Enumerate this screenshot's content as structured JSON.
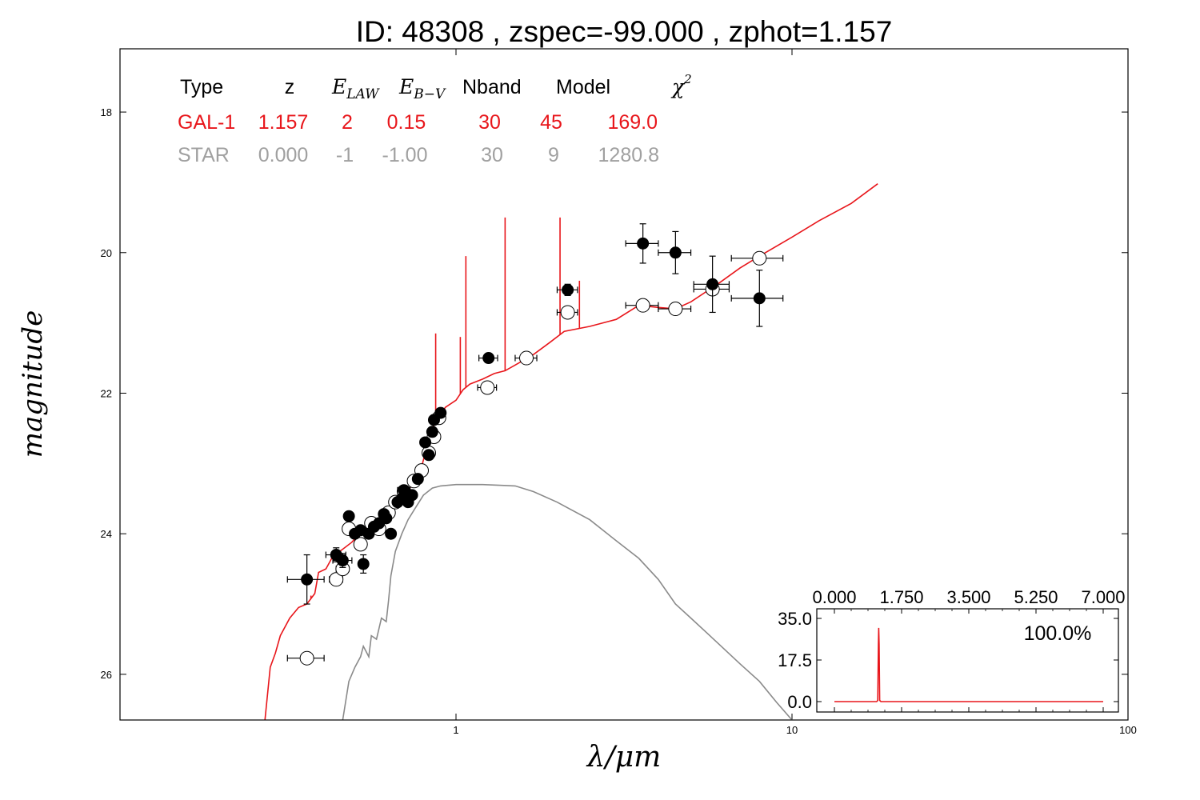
{
  "title": "ID:  48308 , zspec=-99.000 , zphot=1.157",
  "colors": {
    "galaxy": "#e8161b",
    "star": "#8a8a8a",
    "axis": "#000000",
    "table_star": "#a0a0a0"
  },
  "fit_table": {
    "headers": {
      "type": "Type",
      "z": "z",
      "elaw": "LAW",
      "ebv": "B−V",
      "nband": "Nband",
      "model": "Model",
      "chi2": "2"
    },
    "header_symbols": {
      "e": "E",
      "chi": "χ"
    },
    "rows": [
      {
        "type": "GAL-1",
        "z": "1.157",
        "elaw": "2",
        "ebv": "0.15",
        "nband": "30",
        "model": "45",
        "chi2": "169.0"
      },
      {
        "type": "STAR",
        "z": "0.000",
        "elaw": "-1",
        "ebv": "-1.00",
        "nband": "30",
        "model": "9",
        "chi2": "1280.8"
      }
    ]
  },
  "chart_data": [
    {
      "type": "scatter",
      "xlabel": "λ/μm",
      "ylabel": "magnitude",
      "x_scale": "log",
      "xlim": [
        0.1,
        100
      ],
      "ylim": [
        26.65,
        17.1
      ],
      "y_inverted": true,
      "x_ticks": [
        {
          "v": 1,
          "label": "1"
        },
        {
          "v": 10,
          "label": "10"
        },
        {
          "v": 100,
          "label": "100"
        }
      ],
      "y_ticks": [
        {
          "v": 18,
          "label": "18"
        },
        {
          "v": 20,
          "label": "20"
        },
        {
          "v": 22,
          "label": "22"
        },
        {
          "v": 24,
          "label": "24"
        },
        {
          "v": 26,
          "label": "26"
        }
      ],
      "observed": [
        {
          "x": 0.36,
          "y": 24.65,
          "xe": 0.045,
          "ye": 0.35
        },
        {
          "x": 0.44,
          "y": 24.3,
          "xe": 0.03,
          "ye": 0.1
        },
        {
          "x": 0.46,
          "y": 24.38,
          "xe": 0.03,
          "ye": 0.1
        },
        {
          "x": 0.48,
          "y": 23.75,
          "xe": 0.0,
          "ye": 0.0
        },
        {
          "x": 0.5,
          "y": 24.0,
          "xe": 0.015,
          "ye": 0.05
        },
        {
          "x": 0.52,
          "y": 23.95,
          "xe": 0.015,
          "ye": 0.05
        },
        {
          "x": 0.53,
          "y": 24.43,
          "xe": 0.0,
          "ye": 0.13
        },
        {
          "x": 0.55,
          "y": 24.0,
          "xe": 0.015,
          "ye": 0.05
        },
        {
          "x": 0.57,
          "y": 23.9,
          "xe": 0.015,
          "ye": 0.05
        },
        {
          "x": 0.59,
          "y": 23.85,
          "xe": 0.015,
          "ye": 0.05
        },
        {
          "x": 0.61,
          "y": 23.72,
          "xe": 0.015,
          "ye": 0.05
        },
        {
          "x": 0.62,
          "y": 23.78,
          "xe": 0.015,
          "ye": 0.05
        },
        {
          "x": 0.64,
          "y": 24.0,
          "xe": 0.0,
          "ye": 0.0
        },
        {
          "x": 0.67,
          "y": 23.55,
          "xe": 0.02,
          "ye": 0.05
        },
        {
          "x": 0.69,
          "y": 23.5,
          "xe": 0.02,
          "ye": 0.05
        },
        {
          "x": 0.7,
          "y": 23.38,
          "xe": 0.03,
          "ye": 0.05
        },
        {
          "x": 0.72,
          "y": 23.55,
          "xe": 0.02,
          "ye": 0.05
        },
        {
          "x": 0.74,
          "y": 23.45,
          "xe": 0.02,
          "ye": 0.05
        },
        {
          "x": 0.77,
          "y": 23.22,
          "xe": 0.02,
          "ye": 0.05
        },
        {
          "x": 0.81,
          "y": 22.7,
          "xe": 0.02,
          "ye": 0.05
        },
        {
          "x": 0.83,
          "y": 22.88,
          "xe": 0.02,
          "ye": 0.05
        },
        {
          "x": 0.85,
          "y": 22.55,
          "xe": 0.02,
          "ye": 0.05
        },
        {
          "x": 0.86,
          "y": 22.38,
          "xe": 0.02,
          "ye": 0.05
        },
        {
          "x": 0.9,
          "y": 22.28,
          "xe": 0.02,
          "ye": 0.05
        },
        {
          "x": 1.25,
          "y": 21.5,
          "xe": 0.08,
          "ye": 0.05
        },
        {
          "x": 2.15,
          "y": 20.53,
          "xe": 0.15,
          "ye": 0.08
        },
        {
          "x": 3.6,
          "y": 19.87,
          "xe": 0.4,
          "ye": 0.28
        },
        {
          "x": 4.5,
          "y": 20.0,
          "xe": 0.5,
          "ye": 0.3
        },
        {
          "x": 5.8,
          "y": 20.45,
          "xe": 0.7,
          "ye": 0.4
        },
        {
          "x": 8.0,
          "y": 20.65,
          "xe": 1.4,
          "ye": 0.4
        }
      ],
      "model_points": [
        {
          "x": 0.36,
          "y": 25.77,
          "xe": 0.045
        },
        {
          "x": 0.44,
          "y": 24.65,
          "xe": 0.02
        },
        {
          "x": 0.46,
          "y": 24.5,
          "xe": 0.02
        },
        {
          "x": 0.48,
          "y": 23.93,
          "xe": 0.0
        },
        {
          "x": 0.52,
          "y": 24.15,
          "xe": 0.015
        },
        {
          "x": 0.56,
          "y": 23.85,
          "xe": 0.015
        },
        {
          "x": 0.59,
          "y": 23.93,
          "xe": 0.015
        },
        {
          "x": 0.63,
          "y": 23.7,
          "xe": 0.02
        },
        {
          "x": 0.66,
          "y": 23.55,
          "xe": 0.02
        },
        {
          "x": 0.7,
          "y": 23.4,
          "xe": 0.02
        },
        {
          "x": 0.75,
          "y": 23.25,
          "xe": 0.02
        },
        {
          "x": 0.79,
          "y": 23.1,
          "xe": 0.02
        },
        {
          "x": 0.83,
          "y": 22.85,
          "xe": 0.02
        },
        {
          "x": 0.86,
          "y": 22.62,
          "xe": 0.02
        },
        {
          "x": 0.89,
          "y": 22.35,
          "xe": 0.02
        },
        {
          "x": 1.24,
          "y": 21.92,
          "xe": 0.08
        },
        {
          "x": 1.62,
          "y": 21.5,
          "xe": 0.12
        },
        {
          "x": 2.15,
          "y": 20.85,
          "xe": 0.15
        },
        {
          "x": 3.6,
          "y": 20.75,
          "xe": 0.4
        },
        {
          "x": 4.5,
          "y": 20.8,
          "xe": 0.5
        },
        {
          "x": 5.8,
          "y": 20.52,
          "xe": 0.7
        },
        {
          "x": 8.0,
          "y": 20.08,
          "xe": 1.4
        }
      ],
      "galaxy_sed": [
        [
          0.27,
          26.65
        ],
        [
          0.28,
          25.9
        ],
        [
          0.29,
          25.7
        ],
        [
          0.3,
          25.45
        ],
        [
          0.32,
          25.2
        ],
        [
          0.34,
          25.05
        ],
        [
          0.36,
          25.0
        ],
        [
          0.38,
          24.85
        ],
        [
          0.39,
          24.55
        ],
        [
          0.41,
          24.5
        ],
        [
          0.43,
          24.32
        ],
        [
          0.46,
          24.22
        ],
        [
          0.49,
          24.12
        ],
        [
          0.52,
          23.98
        ],
        [
          0.56,
          23.88
        ],
        [
          0.6,
          23.78
        ],
        [
          0.65,
          23.62
        ],
        [
          0.7,
          23.45
        ],
        [
          0.75,
          23.28
        ],
        [
          0.79,
          23.05
        ],
        [
          0.82,
          22.75
        ],
        [
          0.85,
          22.5
        ],
        [
          0.88,
          22.35
        ],
        [
          0.93,
          22.2
        ],
        [
          1.0,
          22.1
        ],
        [
          1.05,
          21.95
        ],
        [
          1.1,
          21.87
        ],
        [
          1.2,
          21.8
        ],
        [
          1.3,
          21.72
        ],
        [
          1.4,
          21.68
        ],
        [
          1.5,
          21.6
        ],
        [
          1.7,
          21.45
        ],
        [
          1.9,
          21.28
        ],
        [
          2.1,
          21.12
        ],
        [
          2.5,
          21.05
        ],
        [
          3.0,
          20.95
        ],
        [
          3.5,
          20.75
        ],
        [
          4.0,
          20.78
        ],
        [
          4.5,
          20.8
        ],
        [
          5.0,
          20.7
        ],
        [
          6.0,
          20.45
        ],
        [
          7.0,
          20.22
        ],
        [
          8.0,
          20.05
        ],
        [
          10.0,
          19.78
        ],
        [
          12.0,
          19.55
        ],
        [
          15.0,
          19.3
        ],
        [
          18.0,
          19.02
        ]
      ],
      "galaxy_lines": [
        {
          "x": 0.37,
          "top": 24.88
        },
        {
          "x": 0.5,
          "top": 24.12
        },
        {
          "x": 0.66,
          "top": 23.45
        },
        {
          "x": 0.87,
          "top": 21.15
        },
        {
          "x": 1.03,
          "top": 21.2
        },
        {
          "x": 1.07,
          "top": 20.05
        },
        {
          "x": 1.4,
          "top": 19.5
        },
        {
          "x": 2.04,
          "top": 19.5
        },
        {
          "x": 2.33,
          "top": 20.4
        }
      ],
      "star_sed": [
        [
          0.46,
          26.65
        ],
        [
          0.48,
          26.1
        ],
        [
          0.5,
          25.9
        ],
        [
          0.52,
          25.75
        ],
        [
          0.53,
          25.6
        ],
        [
          0.55,
          25.75
        ],
        [
          0.56,
          25.45
        ],
        [
          0.58,
          25.5
        ],
        [
          0.6,
          25.2
        ],
        [
          0.62,
          25.25
        ],
        [
          0.63,
          24.95
        ],
        [
          0.64,
          24.6
        ],
        [
          0.66,
          24.25
        ],
        [
          0.69,
          24.0
        ],
        [
          0.72,
          23.8
        ],
        [
          0.76,
          23.62
        ],
        [
          0.8,
          23.45
        ],
        [
          0.85,
          23.35
        ],
        [
          0.9,
          23.32
        ],
        [
          1.0,
          23.3
        ],
        [
          1.2,
          23.3
        ],
        [
          1.5,
          23.32
        ],
        [
          1.7,
          23.4
        ],
        [
          2.0,
          23.55
        ],
        [
          2.5,
          23.8
        ],
        [
          3.0,
          24.1
        ],
        [
          3.5,
          24.35
        ],
        [
          4.0,
          24.65
        ],
        [
          4.5,
          25.0
        ],
        [
          5.0,
          25.2
        ],
        [
          6.0,
          25.55
        ],
        [
          7.0,
          25.85
        ],
        [
          8.0,
          26.1
        ],
        [
          9.0,
          26.4
        ],
        [
          10.0,
          26.65
        ]
      ]
    },
    {
      "type": "line",
      "title": "",
      "xlim": [
        0.0,
        7.0
      ],
      "ylim": [
        0.0,
        35.0
      ],
      "x_ticks": [
        "0.000",
        "1.750",
        "3.500",
        "5.250",
        "7.000"
      ],
      "y_ticks": [
        "0.0",
        "17.5",
        "35.0"
      ],
      "annotation": "100.0%",
      "pdz": [
        [
          0.0,
          0.0
        ],
        [
          1.1,
          0.0
        ],
        [
          1.13,
          0.5
        ],
        [
          1.145,
          24.0
        ],
        [
          1.155,
          31.0
        ],
        [
          1.165,
          24.0
        ],
        [
          1.18,
          0.5
        ],
        [
          1.21,
          0.0
        ],
        [
          7.0,
          0.0
        ]
      ]
    }
  ]
}
